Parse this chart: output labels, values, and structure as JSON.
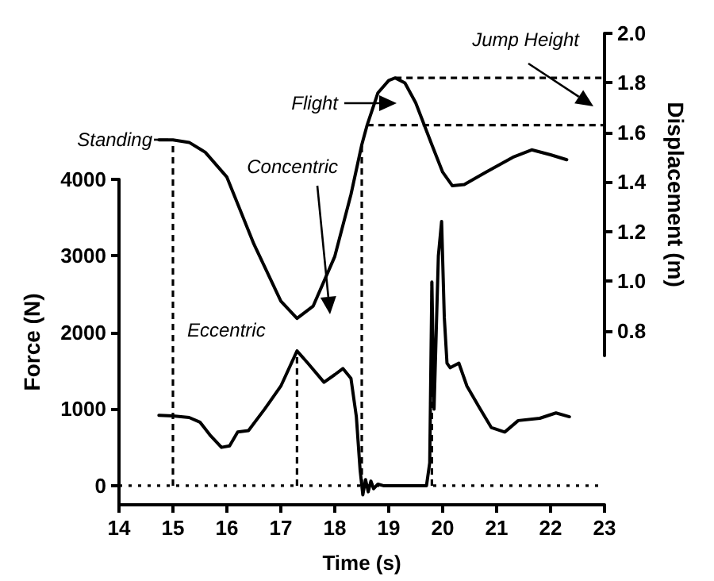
{
  "chart_data": {
    "type": "line",
    "xlabel": "Time (s)",
    "ylabel": "Force (N)",
    "y2label": "Displacement (m)",
    "xlim": [
      14,
      23
    ],
    "xticks": [
      14,
      15,
      16,
      17,
      18,
      19,
      20,
      21,
      22,
      23
    ],
    "ylim": [
      -250,
      4000
    ],
    "yticks": [
      0,
      1000,
      2000,
      3000,
      4000
    ],
    "y2lim": [
      0.7,
      2.0
    ],
    "y2ticks": [
      0.8,
      {
        "value": 1,
        "label": "1.0"
      },
      1.2,
      1.4,
      1.6,
      1.8,
      {
        "value": 2,
        "label": "2.0"
      }
    ],
    "series": [
      {
        "color": "#000000",
        "x": [
          14.74,
          15.0,
          15.3,
          15.5,
          15.7,
          15.9,
          16.05,
          16.2,
          16.4,
          16.7,
          17.0,
          17.3,
          17.5,
          17.8,
          18.0,
          18.15,
          18.3,
          18.4,
          18.47,
          18.52,
          18.57,
          18.62,
          18.67,
          18.72,
          18.8,
          18.9,
          19.0,
          19.7,
          19.76,
          19.8,
          19.84,
          19.88,
          19.92,
          19.98,
          20.03,
          20.08,
          20.14,
          20.3,
          20.45,
          20.68,
          20.9,
          21.15,
          21.4,
          21.8,
          22.1,
          22.35
        ],
        "values": [
          920,
          910,
          890,
          830,
          650,
          500,
          520,
          700,
          720,
          1000,
          1300,
          1760,
          1600,
          1350,
          1450,
          1530,
          1400,
          900,
          200,
          -120,
          80,
          -80,
          60,
          -40,
          20,
          0,
          0,
          0,
          300,
          2660,
          1000,
          2000,
          3000,
          3450,
          2200,
          1600,
          1540,
          1600,
          1300,
          1020,
          760,
          700,
          850,
          880,
          950,
          900
        ]
      },
      {
        "color": "#000000",
        "axis": "y2",
        "x": [
          14.74,
          15.0,
          15.3,
          15.6,
          16.0,
          16.5,
          17.0,
          17.3,
          17.6,
          18.0,
          18.3,
          18.5,
          18.6,
          18.8,
          19.0,
          19.12,
          19.3,
          19.5,
          19.8,
          20.0,
          20.18,
          20.4,
          20.8,
          21.3,
          21.65,
          22.0,
          22.3
        ],
        "values": [
          1.57,
          1.57,
          1.56,
          1.52,
          1.42,
          1.15,
          0.92,
          0.85,
          0.9,
          1.1,
          1.35,
          1.55,
          1.63,
          1.76,
          1.81,
          1.82,
          1.8,
          1.72,
          1.55,
          1.44,
          1.385,
          1.39,
          1.44,
          1.5,
          1.53,
          1.51,
          1.49
        ]
      }
    ],
    "ref_lines": [
      {
        "axis": "y",
        "value": 0,
        "line_style": "dotted"
      },
      {
        "axis": "x",
        "value": 15,
        "line_style": "dashed"
      },
      {
        "axis": "x",
        "value": 17.3,
        "line_style": "dashed"
      },
      {
        "axis": "x",
        "value": 18.5,
        "line_style": "dashed"
      },
      {
        "axis": "x",
        "value": 19.8,
        "line_style": "dashed"
      },
      {
        "axis": "y2",
        "value": 1.82,
        "line_style": "dashed"
      },
      {
        "axis": "y2",
        "value": 1.63,
        "line_style": "dashed"
      }
    ],
    "annotations": [
      "Standing",
      "Flight",
      "Concentric",
      "Eccentric",
      "Jump Height"
    ],
    "grid": false,
    "marker": "none",
    "line_style": "solid"
  }
}
